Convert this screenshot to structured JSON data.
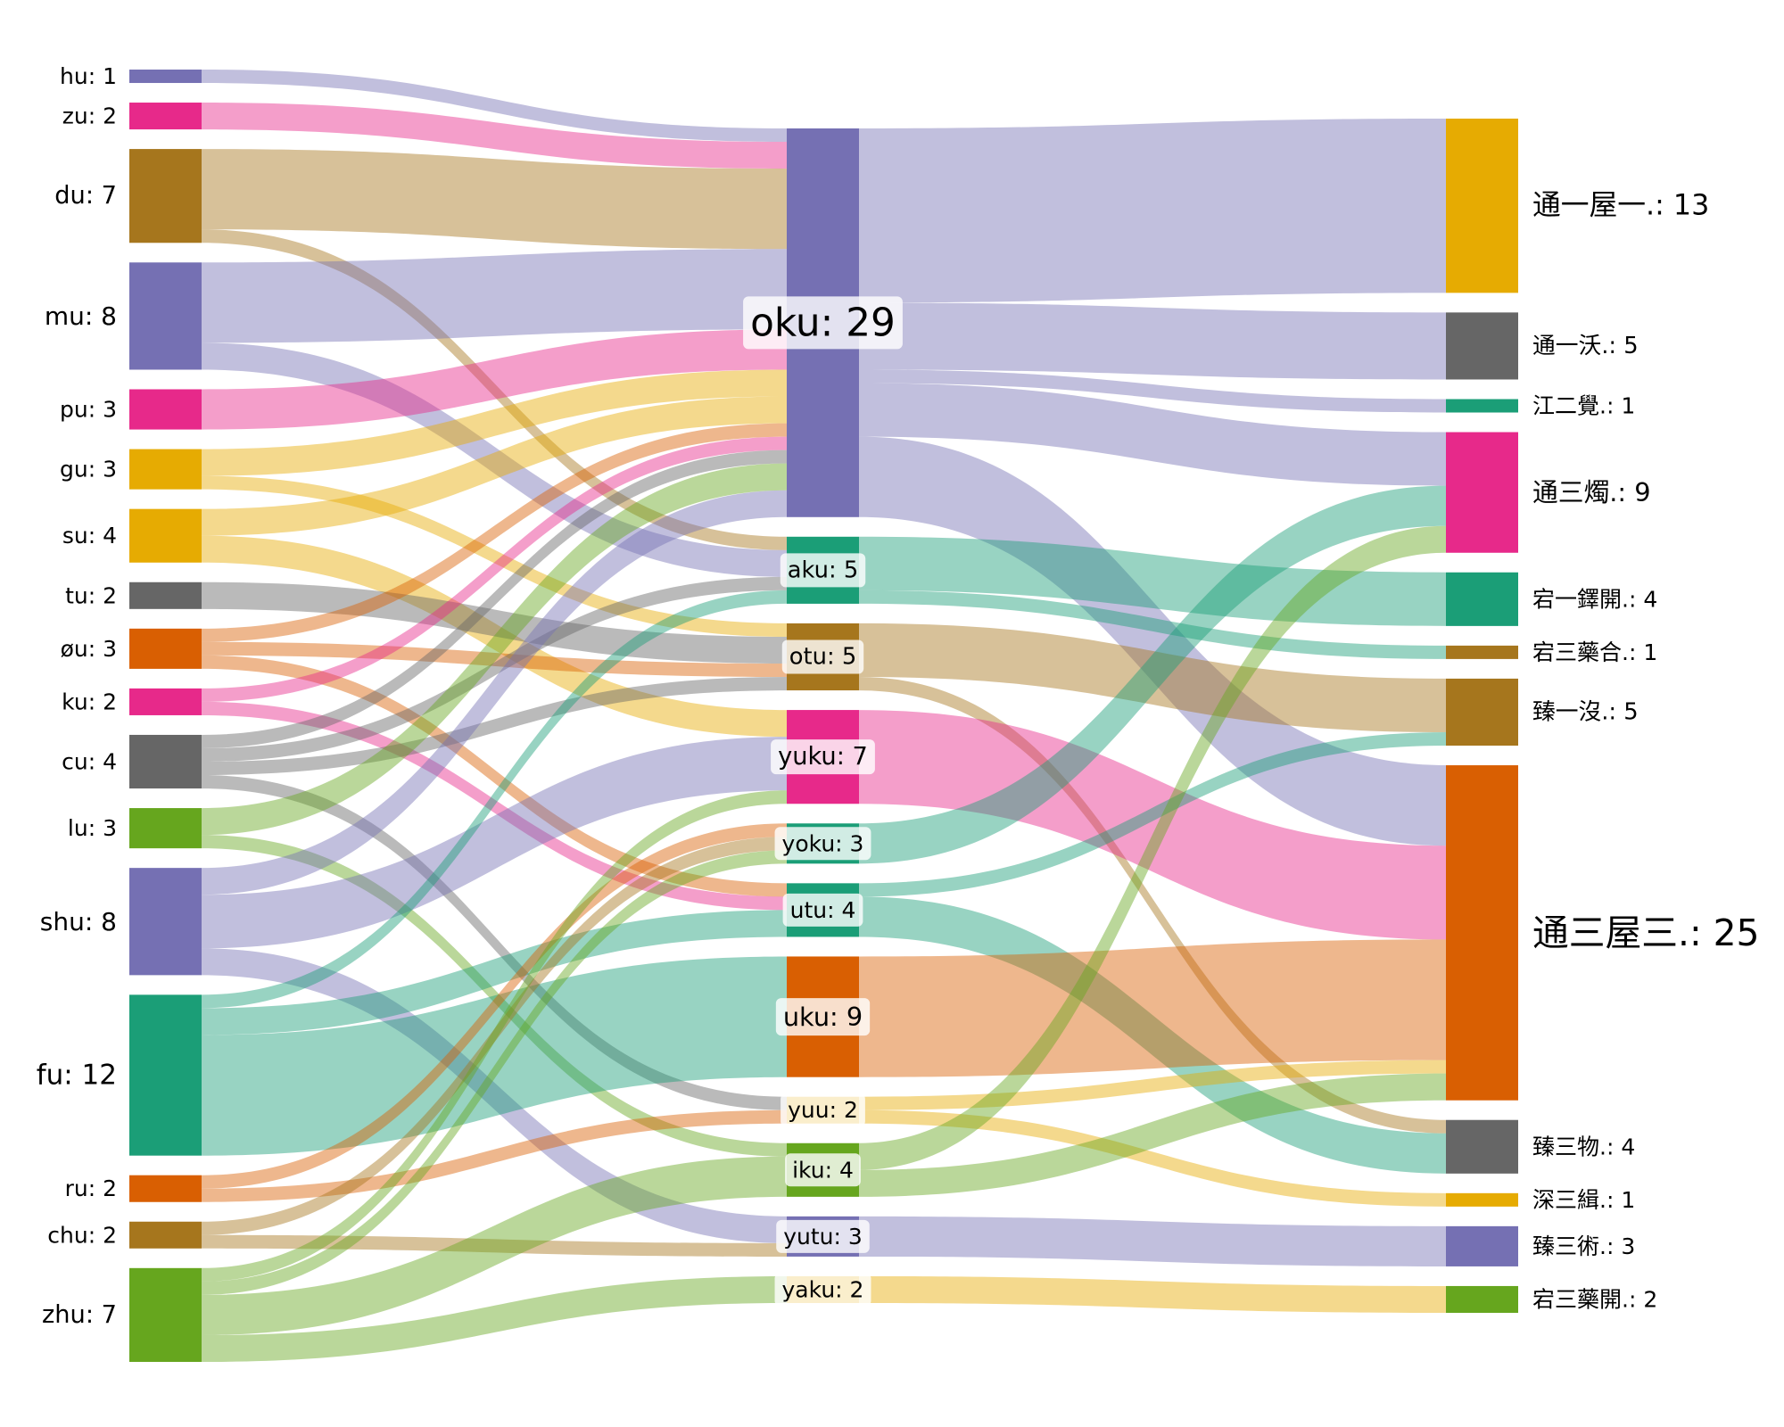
{
  "colors": {
    "purple": "#7570b3",
    "magenta": "#e7298a",
    "brown": "#a6761d",
    "gold": "#e6ab02",
    "gray": "#666666",
    "orange": "#d95f02",
    "green": "#66a61e",
    "teal": "#1b9e77"
  },
  "chart_data": {
    "type": "sankey",
    "nodes": {
      "left": [
        {
          "id": "hu",
          "label": "hu: 1",
          "value": 1,
          "color": "purple"
        },
        {
          "id": "zu",
          "label": "zu: 2",
          "value": 2,
          "color": "magenta"
        },
        {
          "id": "du",
          "label": "du: 7",
          "value": 7,
          "color": "brown"
        },
        {
          "id": "mu",
          "label": "mu: 8",
          "value": 8,
          "color": "purple"
        },
        {
          "id": "pu",
          "label": "pu: 3",
          "value": 3,
          "color": "magenta"
        },
        {
          "id": "gu",
          "label": "gu: 3",
          "value": 3,
          "color": "gold"
        },
        {
          "id": "su",
          "label": "su: 4",
          "value": 4,
          "color": "gold"
        },
        {
          "id": "tu",
          "label": "tu: 2",
          "value": 2,
          "color": "gray"
        },
        {
          "id": "ou",
          "label": "øu: 3",
          "value": 3,
          "color": "orange"
        },
        {
          "id": "ku",
          "label": "ku: 2",
          "value": 2,
          "color": "magenta"
        },
        {
          "id": "cu",
          "label": "cu: 4",
          "value": 4,
          "color": "gray"
        },
        {
          "id": "lu",
          "label": "lu: 3",
          "value": 3,
          "color": "green"
        },
        {
          "id": "shu",
          "label": "shu: 8",
          "value": 8,
          "color": "purple"
        },
        {
          "id": "fu",
          "label": "fu: 12",
          "value": 12,
          "color": "teal"
        },
        {
          "id": "ru",
          "label": "ru: 2",
          "value": 2,
          "color": "orange"
        },
        {
          "id": "chu",
          "label": "chu: 2",
          "value": 2,
          "color": "brown"
        },
        {
          "id": "zhu",
          "label": "zhu: 7",
          "value": 7,
          "color": "green"
        }
      ],
      "middle": [
        {
          "id": "oku",
          "label": "oku: 29",
          "value": 29,
          "color": "purple"
        },
        {
          "id": "aku",
          "label": "aku: 5",
          "value": 5,
          "color": "teal"
        },
        {
          "id": "otu",
          "label": "otu: 5",
          "value": 5,
          "color": "brown"
        },
        {
          "id": "yuku",
          "label": "yuku: 7",
          "value": 7,
          "color": "magenta"
        },
        {
          "id": "yoku",
          "label": "yoku: 3",
          "value": 3,
          "color": "teal"
        },
        {
          "id": "utu",
          "label": "utu: 4",
          "value": 4,
          "color": "teal"
        },
        {
          "id": "uku",
          "label": "uku: 9",
          "value": 9,
          "color": "orange"
        },
        {
          "id": "yuu",
          "label": "yuu: 2",
          "value": 2,
          "color": "gold"
        },
        {
          "id": "iku",
          "label": "iku: 4",
          "value": 4,
          "color": "green"
        },
        {
          "id": "yutu",
          "label": "yutu: 3",
          "value": 3,
          "color": "purple"
        },
        {
          "id": "yaku",
          "label": "yaku: 2",
          "value": 2,
          "color": "gold"
        }
      ],
      "right": [
        {
          "id": "r1",
          "label": "通一屋一.: 13",
          "value": 13,
          "color": "gold"
        },
        {
          "id": "r2",
          "label": "通一沃.: 5",
          "value": 5,
          "color": "gray"
        },
        {
          "id": "r3",
          "label": "江二覺.: 1",
          "value": 1,
          "color": "teal"
        },
        {
          "id": "r4",
          "label": "通三燭.: 9",
          "value": 9,
          "color": "magenta"
        },
        {
          "id": "r5",
          "label": "宕一鐸開.: 4",
          "value": 4,
          "color": "teal"
        },
        {
          "id": "r6",
          "label": "宕三藥合.: 1",
          "value": 1,
          "color": "brown"
        },
        {
          "id": "r7",
          "label": "臻一沒.: 5",
          "value": 5,
          "color": "brown"
        },
        {
          "id": "r8",
          "label": "通三屋三.: 25",
          "value": 25,
          "color": "orange"
        },
        {
          "id": "r9",
          "label": "臻三物.: 4",
          "value": 4,
          "color": "gray"
        },
        {
          "id": "r10",
          "label": "深三緝.: 1",
          "value": 1,
          "color": "gold"
        },
        {
          "id": "r11",
          "label": "臻三術.: 3",
          "value": 3,
          "color": "purple"
        },
        {
          "id": "r12",
          "label": "宕三藥開.: 2",
          "value": 2,
          "color": "green"
        }
      ]
    },
    "links": [
      {
        "source": "hu",
        "target": "oku",
        "value": 1
      },
      {
        "source": "zu",
        "target": "oku",
        "value": 2
      },
      {
        "source": "du",
        "target": "oku",
        "value": 6
      },
      {
        "source": "du",
        "target": "aku",
        "value": 1
      },
      {
        "source": "mu",
        "target": "oku",
        "value": 6
      },
      {
        "source": "mu",
        "target": "aku",
        "value": 2
      },
      {
        "source": "pu",
        "target": "oku",
        "value": 3
      },
      {
        "source": "gu",
        "target": "oku",
        "value": 2
      },
      {
        "source": "gu",
        "target": "otu",
        "value": 1
      },
      {
        "source": "su",
        "target": "oku",
        "value": 2
      },
      {
        "source": "su",
        "target": "yuku",
        "value": 2
      },
      {
        "source": "tu",
        "target": "otu",
        "value": 2
      },
      {
        "source": "ou",
        "target": "oku",
        "value": 1
      },
      {
        "source": "ou",
        "target": "otu",
        "value": 1
      },
      {
        "source": "ou",
        "target": "utu",
        "value": 1
      },
      {
        "source": "ku",
        "target": "oku",
        "value": 1
      },
      {
        "source": "ku",
        "target": "utu",
        "value": 1
      },
      {
        "source": "cu",
        "target": "oku",
        "value": 1
      },
      {
        "source": "cu",
        "target": "aku",
        "value": 1
      },
      {
        "source": "cu",
        "target": "otu",
        "value": 1
      },
      {
        "source": "cu",
        "target": "yuu",
        "value": 1
      },
      {
        "source": "lu",
        "target": "oku",
        "value": 2
      },
      {
        "source": "lu",
        "target": "iku",
        "value": 1
      },
      {
        "source": "shu",
        "target": "oku",
        "value": 2
      },
      {
        "source": "shu",
        "target": "yuku",
        "value": 4
      },
      {
        "source": "shu",
        "target": "yutu",
        "value": 2
      },
      {
        "source": "fu",
        "target": "aku",
        "value": 1
      },
      {
        "source": "fu",
        "target": "utu",
        "value": 2
      },
      {
        "source": "fu",
        "target": "uku",
        "value": 9
      },
      {
        "source": "ru",
        "target": "yoku",
        "value": 1
      },
      {
        "source": "ru",
        "target": "yuu",
        "value": 1
      },
      {
        "source": "chu",
        "target": "yoku",
        "value": 1
      },
      {
        "source": "chu",
        "target": "yutu",
        "value": 1
      },
      {
        "source": "zhu",
        "target": "yuku",
        "value": 1
      },
      {
        "source": "zhu",
        "target": "yoku",
        "value": 1
      },
      {
        "source": "zhu",
        "target": "iku",
        "value": 3
      },
      {
        "source": "zhu",
        "target": "yaku",
        "value": 2
      },
      {
        "source": "oku",
        "target": "r1",
        "value": 13
      },
      {
        "source": "oku",
        "target": "r2",
        "value": 5
      },
      {
        "source": "oku",
        "target": "r3",
        "value": 1
      },
      {
        "source": "oku",
        "target": "r4",
        "value": 4
      },
      {
        "source": "oku",
        "target": "r8",
        "value": 6
      },
      {
        "source": "aku",
        "target": "r5",
        "value": 4
      },
      {
        "source": "aku",
        "target": "r6",
        "value": 1
      },
      {
        "source": "otu",
        "target": "r7",
        "value": 4
      },
      {
        "source": "otu",
        "target": "r9",
        "value": 1
      },
      {
        "source": "yuku",
        "target": "r8",
        "value": 7
      },
      {
        "source": "yoku",
        "target": "r4",
        "value": 3
      },
      {
        "source": "utu",
        "target": "r7",
        "value": 1
      },
      {
        "source": "utu",
        "target": "r9",
        "value": 3
      },
      {
        "source": "uku",
        "target": "r8",
        "value": 9
      },
      {
        "source": "yuu",
        "target": "r8",
        "value": 1
      },
      {
        "source": "yuu",
        "target": "r10",
        "value": 1
      },
      {
        "source": "iku",
        "target": "r8",
        "value": 2
      },
      {
        "source": "iku",
        "target": "r4",
        "value": 2
      },
      {
        "source": "yutu",
        "target": "r11",
        "value": 3
      },
      {
        "source": "yaku",
        "target": "r12",
        "value": 2
      }
    ]
  }
}
